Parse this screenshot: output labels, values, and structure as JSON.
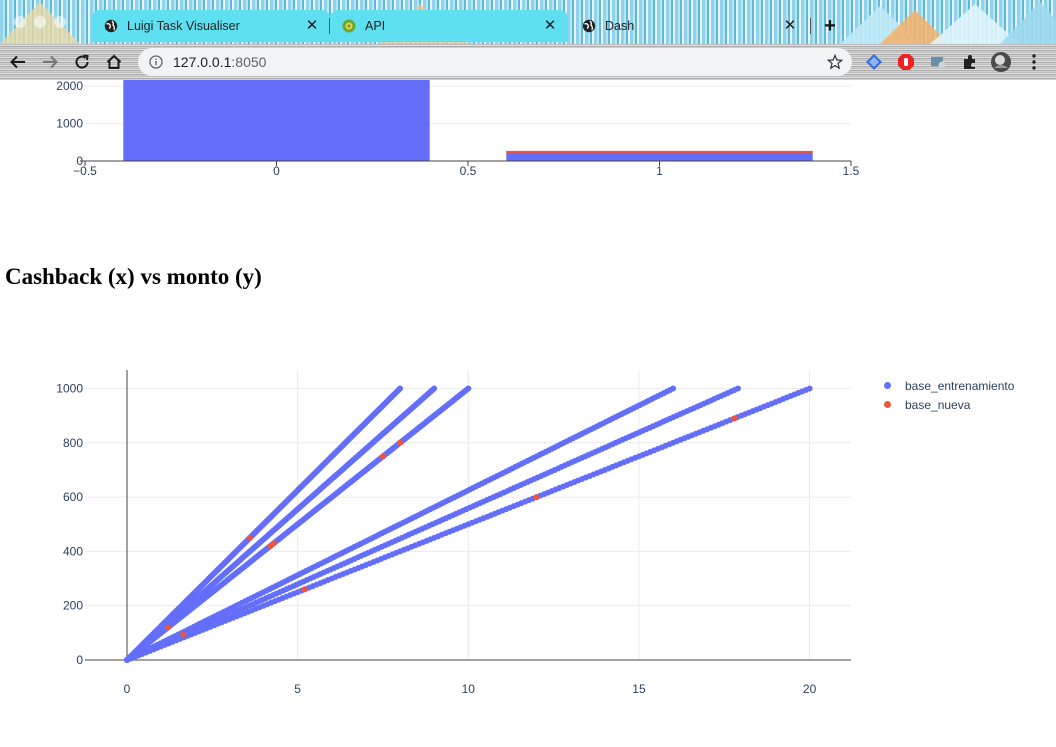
{
  "browser": {
    "tabs": [
      {
        "label": "Luigi Task Visualiser",
        "active": true,
        "favicon": "globe-icon"
      },
      {
        "label": "API",
        "active": true,
        "favicon": "api-icon"
      },
      {
        "label": "Dash",
        "active": false,
        "favicon": "globe-icon"
      }
    ],
    "url_host": "127.0.0.1",
    "url_port": ":8050"
  },
  "page": {
    "heading": "Cashback (x) vs monto (y)"
  },
  "colors": {
    "series_primary": "#636efa",
    "series_secondary": "#ef553b",
    "axis_text": "#2a3f5f"
  },
  "chart_data": [
    {
      "type": "bar",
      "x": [
        0,
        1
      ],
      "values": [
        2200,
        260
      ],
      "overlay_values": [
        0,
        270
      ],
      "xlim": [
        -0.5,
        1.5
      ],
      "ylim": [
        0,
        2200
      ],
      "xticks": [
        "−0.5",
        "0",
        "0.5",
        "1",
        "1.5"
      ],
      "xtick_values": [
        -0.5,
        0,
        0.5,
        1,
        1.5
      ],
      "yticks": [
        "0",
        "1000",
        "2000"
      ],
      "ytick_values": [
        0,
        1000,
        2000
      ],
      "grid": true
    },
    {
      "type": "scatter",
      "title": "Cashback (x) vs monto (y)",
      "xlim": [
        -0.5,
        21
      ],
      "ylim": [
        -20,
        1070
      ],
      "xticks": [
        "0",
        "5",
        "10",
        "15",
        "20"
      ],
      "xtick_values": [
        0,
        5,
        10,
        15,
        20
      ],
      "yticks": [
        "0",
        "200",
        "400",
        "600",
        "800",
        "1000"
      ],
      "ytick_values": [
        0,
        200,
        400,
        600,
        800,
        1000
      ],
      "grid": true,
      "legend_position": "top-right",
      "series": [
        {
          "name": "base_entrenamiento",
          "color": "#636efa",
          "lines": [
            {
              "x": [
                0,
                8
              ],
              "y": [
                0,
                1000
              ]
            },
            {
              "x": [
                0,
                9
              ],
              "y": [
                0,
                1000
              ]
            },
            {
              "x": [
                0,
                10
              ],
              "y": [
                0,
                1000
              ]
            },
            {
              "x": [
                0,
                16
              ],
              "y": [
                0,
                1000
              ]
            },
            {
              "x": [
                0,
                17.9
              ],
              "y": [
                0,
                1000
              ]
            },
            {
              "x": [
                0,
                20
              ],
              "y": [
                0,
                1000
              ]
            }
          ]
        },
        {
          "name": "base_nueva",
          "color": "#ef553b",
          "points": [
            {
              "x": 3.6,
              "y": 450
            },
            {
              "x": 4.2,
              "y": 420
            },
            {
              "x": 4.3,
              "y": 430
            },
            {
              "x": 7.5,
              "y": 750
            },
            {
              "x": 8.0,
              "y": 800
            },
            {
              "x": 1.2,
              "y": 120
            },
            {
              "x": 1.65,
              "y": 95
            },
            {
              "x": 5.2,
              "y": 260
            },
            {
              "x": 12.0,
              "y": 600
            },
            {
              "x": 17.8,
              "y": 890
            }
          ]
        }
      ]
    }
  ]
}
